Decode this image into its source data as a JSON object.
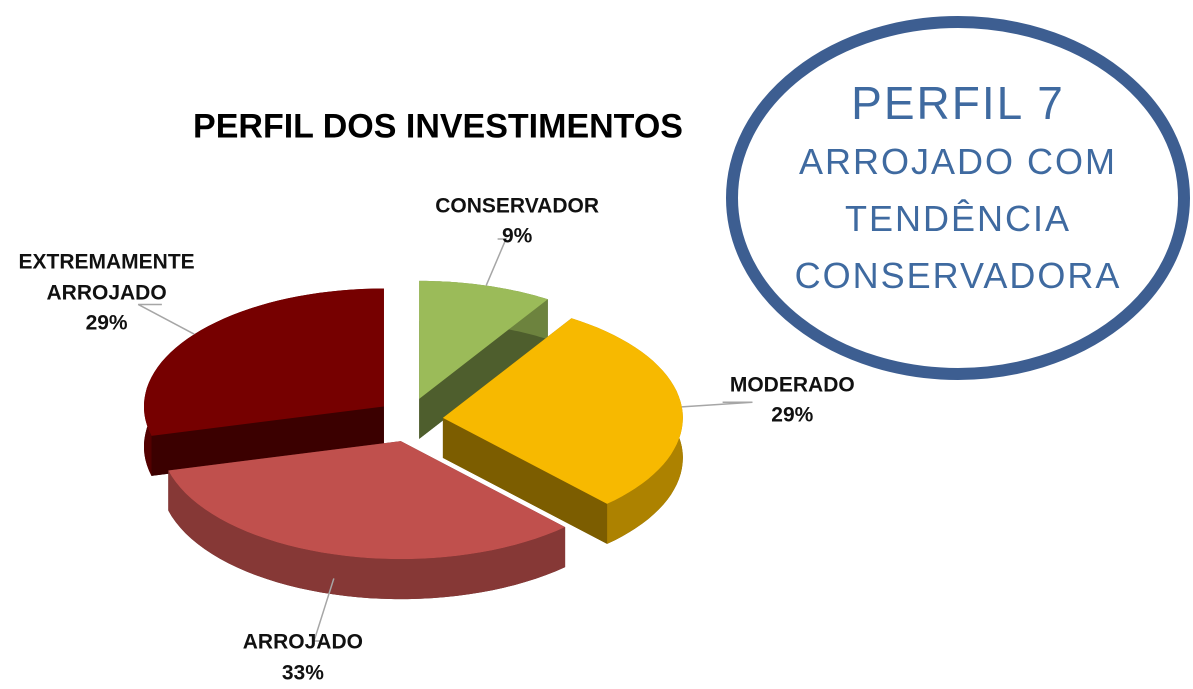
{
  "chart_data": {
    "type": "pie",
    "title": "PERFIL DOS INVESTIMENTOS",
    "categories": [
      "CONSERVADOR",
      "MODERADO",
      "ARROJADO",
      "EXTREMAMENTE ARROJADO"
    ],
    "values": [
      9,
      29,
      33,
      29
    ],
    "value_labels": [
      "9%",
      "29%",
      "33%",
      "29%"
    ],
    "colors": [
      "#9bbb59",
      "#f7b900",
      "#c0504d",
      "#760000"
    ],
    "annotations": [
      "PERFIL 7",
      "ARROJADO COM",
      "TENDÊNCIA",
      "CONSERVADORA"
    ]
  }
}
